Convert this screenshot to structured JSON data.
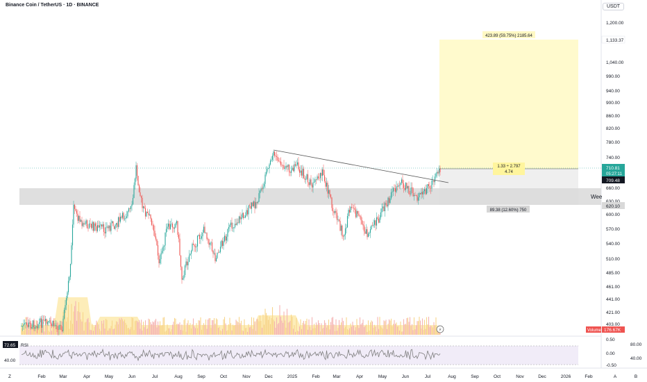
{
  "header": {
    "title": "Binance Coin / TetherUS · 1D · BINANCE",
    "currency": "USDT"
  },
  "chart_data": {
    "type": "candlestick",
    "price_axis": {
      "ticks": [
        "1,200.00",
        "1,040.00",
        "990.00",
        "940.00",
        "900.00",
        "860.00",
        "820.00",
        "780.00",
        "740.00",
        "680.00",
        "660.00",
        "630.00",
        "600.00",
        "570.00",
        "540.00",
        "510.00",
        "485.00",
        "461.00",
        "441.00",
        "421.00",
        "403.00"
      ],
      "scale": "log"
    },
    "time_axis": {
      "ticks": [
        "Z",
        "Feb",
        "Mar",
        "Apr",
        "May",
        "Jun",
        "Jul",
        "Aug",
        "Sep",
        "Oct",
        "Nov",
        "Dec",
        "2025",
        "Feb",
        "Mar",
        "Apr",
        "May",
        "Jun",
        "Jul",
        "Aug",
        "Sep",
        "Oct",
        "Nov",
        "Dec",
        "2026",
        "Feb",
        "A",
        "B"
      ]
    },
    "price_labels": {
      "target": "1,133.37",
      "last_price": "710.81",
      "countdown": "05:27:11",
      "close_line": "709.48",
      "support": "620.10"
    },
    "long_position": {
      "target_text": "423.89 (59.75%) 2185.64",
      "ratio_text": "1.33 ÷ 2.797",
      "ratio_sub": "4.74",
      "stop_text": "89.38 (12.60%) 750"
    },
    "zone_label": "Wee",
    "volume": {
      "label": "Volume",
      "value": "176.67K",
      "color_up": "#f7d58b",
      "color_down": "#f5b4b4",
      "avg_fill": "#fde8a8"
    },
    "rsi": {
      "label": "RSI",
      "value": "72.65",
      "ticks": [
        "80.00",
        "0.00",
        "40.00"
      ],
      "left_ticks": [
        "80.00",
        "40.00"
      ],
      "overbought": 80,
      "oversold": 40,
      "line_color": "#7e7e7e",
      "band_color": "#ede7f6"
    },
    "sub_scale_ticks": [
      "0.50",
      "0.00",
      "-0.50"
    ],
    "colors": {
      "up": "#26a69a",
      "down": "#ef5350",
      "target_zone": "#fff9c4",
      "stop_zone": "#e0e0e0",
      "support_zone": "#d9d9d9",
      "trendline": "#555555",
      "axis_text": "#131722"
    }
  }
}
